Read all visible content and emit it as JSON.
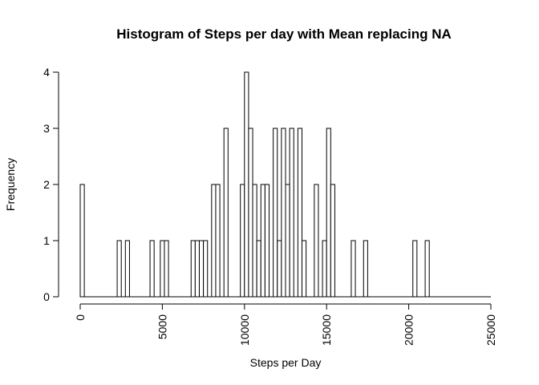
{
  "chart_data": {
    "type": "bar",
    "title": "Histogram of Steps per day with Mean replacing NA",
    "xlabel": "Steps per Day",
    "ylabel": "Frequency",
    "xlim": [
      0,
      25000
    ],
    "ylim": [
      0,
      4
    ],
    "bin_width": 250,
    "x_ticks": [
      0,
      5000,
      10000,
      15000,
      20000,
      25000
    ],
    "y_ticks": [
      0,
      1,
      2,
      3,
      4
    ],
    "bins": [
      {
        "x": 0,
        "count": 2
      },
      {
        "x": 2250,
        "count": 1
      },
      {
        "x": 2750,
        "count": 1
      },
      {
        "x": 4250,
        "count": 1
      },
      {
        "x": 4875,
        "count": 1
      },
      {
        "x": 5125,
        "count": 1
      },
      {
        "x": 6750,
        "count": 1
      },
      {
        "x": 7000,
        "count": 1
      },
      {
        "x": 7250,
        "count": 1
      },
      {
        "x": 7500,
        "count": 1
      },
      {
        "x": 8000,
        "count": 2
      },
      {
        "x": 8250,
        "count": 2
      },
      {
        "x": 8750,
        "count": 3
      },
      {
        "x": 9750,
        "count": 2
      },
      {
        "x": 10000,
        "count": 4
      },
      {
        "x": 10250,
        "count": 3
      },
      {
        "x": 10500,
        "count": 2
      },
      {
        "x": 10750,
        "count": 1
      },
      {
        "x": 11000,
        "count": 2
      },
      {
        "x": 11250,
        "count": 2
      },
      {
        "x": 11750,
        "count": 3
      },
      {
        "x": 12000,
        "count": 1
      },
      {
        "x": 12250,
        "count": 3
      },
      {
        "x": 12500,
        "count": 2
      },
      {
        "x": 12750,
        "count": 3
      },
      {
        "x": 13250,
        "count": 3
      },
      {
        "x": 13500,
        "count": 1
      },
      {
        "x": 14250,
        "count": 2
      },
      {
        "x": 14750,
        "count": 1
      },
      {
        "x": 15000,
        "count": 3
      },
      {
        "x": 15250,
        "count": 2
      },
      {
        "x": 16500,
        "count": 1
      },
      {
        "x": 17250,
        "count": 1
      },
      {
        "x": 20250,
        "count": 1
      },
      {
        "x": 21000,
        "count": 1
      }
    ]
  }
}
